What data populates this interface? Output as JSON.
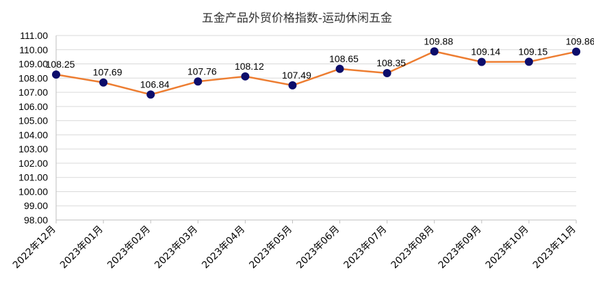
{
  "chart_data": {
    "type": "line",
    "title": "五金产品外贸价格指数-运动休闲五金",
    "categories": [
      "2022年12月",
      "2023年01月",
      "2023年02月",
      "2023年03月",
      "2023年04月",
      "2023年05月",
      "2023年06月",
      "2023年07月",
      "2023年08月",
      "2023年09月",
      "2023年10月",
      "2023年11月"
    ],
    "series": [
      {
        "values": [
          108.25,
          107.69,
          106.84,
          107.76,
          108.12,
          107.49,
          108.65,
          108.35,
          109.88,
          109.14,
          109.15,
          109.86
        ],
        "labels": [
          "108.25",
          "107.69",
          "106.84",
          "107.76",
          "108.12",
          "107.49",
          "108.65",
          "108.35",
          "109.88",
          "109.14",
          "109.15",
          "109.86"
        ]
      }
    ],
    "yticks": [
      "111.00",
      "110.00",
      "109.00",
      "108.00",
      "107.00",
      "106.00",
      "105.00",
      "104.00",
      "103.00",
      "102.00",
      "101.00",
      "100.00",
      "99.00",
      "98.00"
    ],
    "ylim": [
      98,
      111
    ],
    "xlabel": "",
    "ylabel": "",
    "grid": "horizontal",
    "legend": "none",
    "colors": {
      "line": "#ED7D31",
      "marker": "#0D0D6B",
      "grid": "#D9D9D9",
      "axis": "#BFBFBF"
    }
  }
}
